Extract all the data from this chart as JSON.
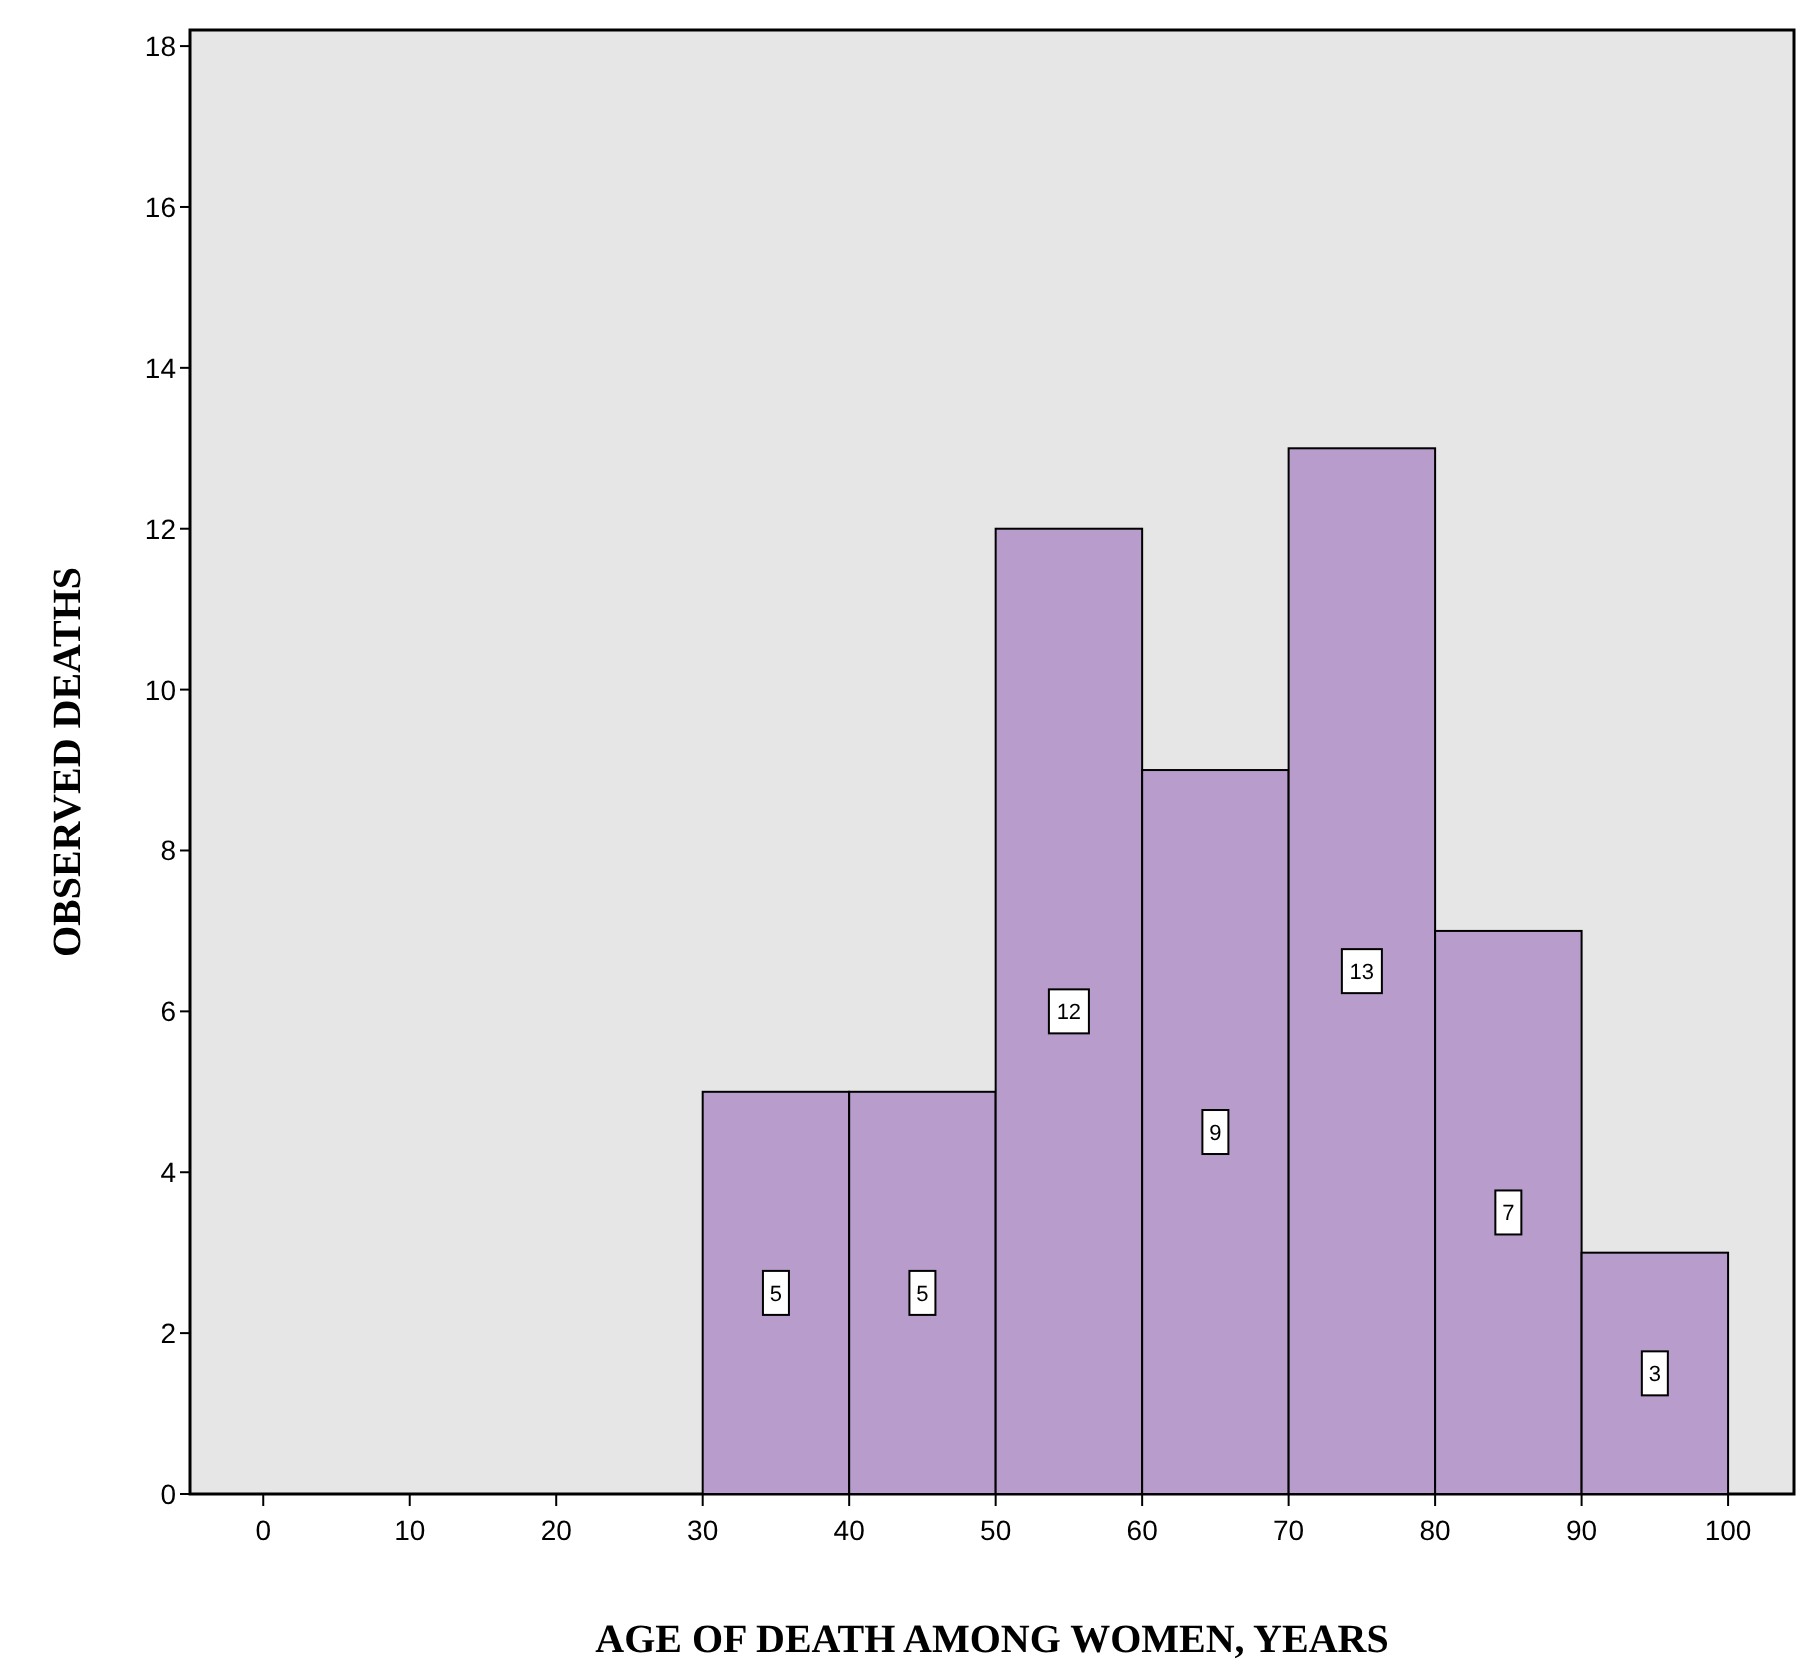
{
  "chart_data": {
    "type": "histogram",
    "xlabel": "AGE OF DEATH AMONG WOMEN, YEARS",
    "ylabel": "OBSERVED DEATHS",
    "bins": [
      30,
      40,
      50,
      60,
      70,
      80,
      90,
      100
    ],
    "values": [
      5,
      5,
      12,
      9,
      13,
      7,
      3
    ],
    "color": "#b89ccc",
    "xlim": [
      -5,
      104.5
    ],
    "xticks": [
      0,
      10,
      20,
      30,
      40,
      50,
      60,
      70,
      80,
      90,
      100
    ],
    "ylim": [
      0,
      18.2
    ],
    "yticks": [
      0,
      2,
      4,
      6,
      8,
      10,
      12,
      14,
      16,
      18
    ],
    "data_labels": true,
    "grid": false
  }
}
